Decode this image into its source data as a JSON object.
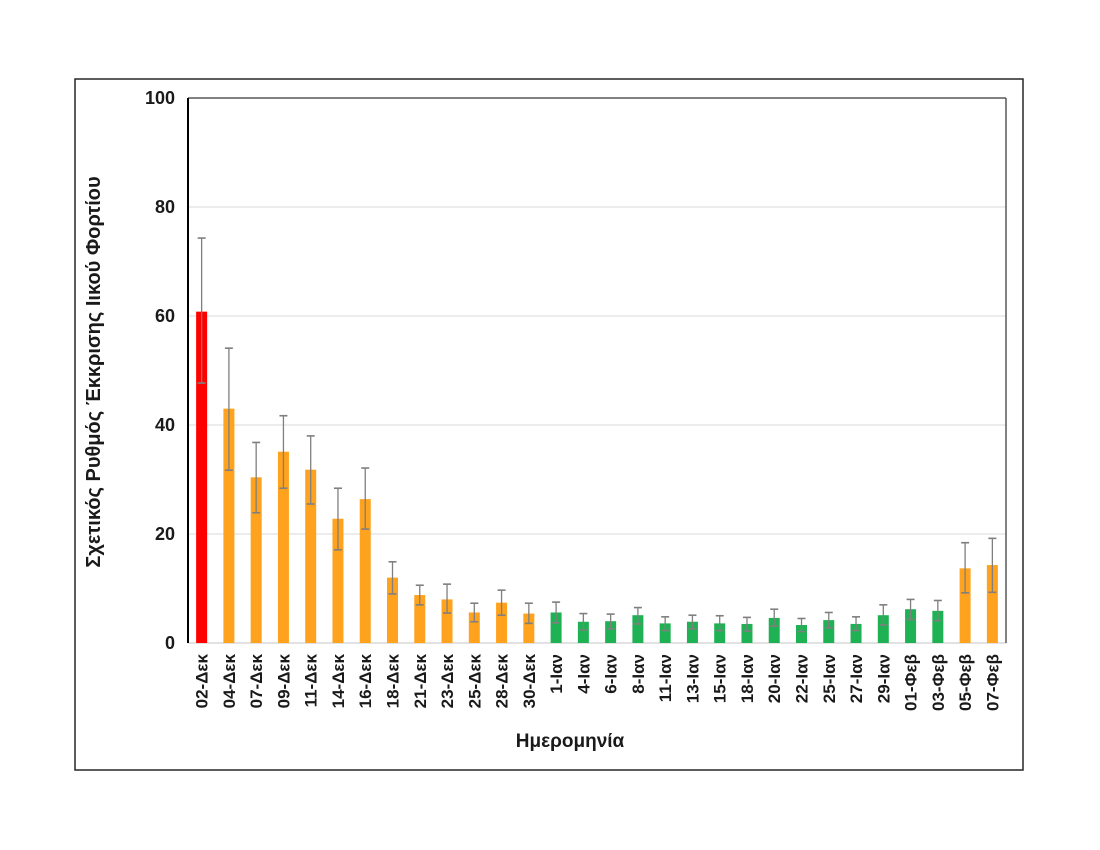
{
  "figure": {
    "background": "#ffffff",
    "border_color": "#262626"
  },
  "chart_data": {
    "type": "bar",
    "title": "",
    "xlabel": "Ημερομηνία",
    "ylabel": "Σχετικός Ρυθμός Έκκρισης Ιικού Φορτίου",
    "ylim": [
      0,
      100
    ],
    "yticks": [
      0,
      20,
      40,
      60,
      80,
      100
    ],
    "grid": "horizontal-light",
    "legend": "none",
    "error_bars": true,
    "categories": [
      "02-Δεκ",
      "04-Δεκ",
      "07-Δεκ",
      "09-Δεκ",
      "11-Δεκ",
      "14-Δεκ",
      "16-Δεκ",
      "18-Δεκ",
      "21-Δεκ",
      "23-Δεκ",
      "25-Δεκ",
      "28-Δεκ",
      "30-Δεκ",
      "1-Ιαν",
      "4-Ιαν",
      "6-Ιαν",
      "8-Ιαν",
      "11-Ιαν",
      "13-Ιαν",
      "15-Ιαν",
      "18-Ιαν",
      "20-Ιαν",
      "22-Ιαν",
      "25-Ιαν",
      "27-Ιαν",
      "29-Ιαν",
      "01-Φεβ",
      "03-Φεβ",
      "05-Φεβ",
      "07-Φεβ"
    ],
    "values": [
      60.8,
      43,
      30.4,
      35.1,
      31.8,
      22.8,
      26.4,
      12,
      8.8,
      8,
      5.6,
      7.4,
      5.4,
      5.6,
      3.9,
      4,
      5.1,
      3.6,
      3.9,
      3.6,
      3.5,
      4.6,
      3.3,
      4.2,
      3.5,
      5.1,
      6.2,
      5.9,
      13.7,
      14.3
    ],
    "error_low": [
      47.7,
      31.7,
      23.9,
      28.4,
      25.5,
      17.1,
      20.9,
      9,
      7,
      5.5,
      3.9,
      5.1,
      3.6,
      3.7,
      2.4,
      2.6,
      3.5,
      2.3,
      2.6,
      2.3,
      2.2,
      3.1,
      2.1,
      2.8,
      2.3,
      3.3,
      4.3,
      4.1,
      9.2,
      9.3
    ],
    "error_high": [
      74.3,
      54.1,
      36.8,
      41.7,
      38,
      28.4,
      32.1,
      14.9,
      10.6,
      10.8,
      7.3,
      9.7,
      7.3,
      7.5,
      5.4,
      5.3,
      6.5,
      4.8,
      5.1,
      5,
      4.7,
      6.2,
      4.5,
      5.6,
      4.8,
      7,
      8,
      7.8,
      18.4,
      19.2
    ],
    "bar_colors": [
      "red",
      "orange",
      "orange",
      "orange",
      "orange",
      "orange",
      "orange",
      "orange",
      "orange",
      "orange",
      "orange",
      "orange",
      "orange",
      "green",
      "green",
      "green",
      "green",
      "green",
      "green",
      "green",
      "green",
      "green",
      "green",
      "green",
      "green",
      "green",
      "green",
      "green",
      "orange",
      "orange"
    ],
    "colors": {
      "red": "#FF0000",
      "orange": "#FFA21D",
      "green": "#1FB254",
      "error_bar": "#7f7f7f",
      "gridline": "#d9d9d9",
      "baseline": "#d9d9d9",
      "plot_border": "#595959",
      "value_axis": "#000000",
      "text": "#1a1a1a"
    }
  }
}
